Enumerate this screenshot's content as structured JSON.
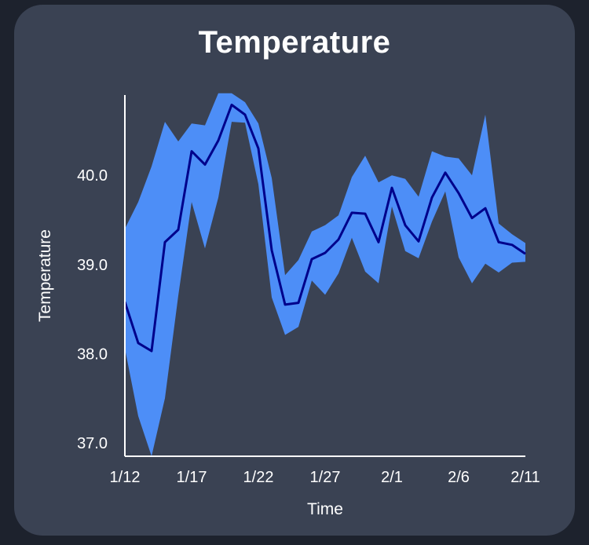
{
  "chart_data": {
    "type": "area",
    "title": "Temperature",
    "xlabel": "Time",
    "ylabel": "Temperature",
    "x": [
      "1/12",
      "1/13",
      "1/14",
      "1/15",
      "1/16",
      "1/17",
      "1/18",
      "1/19",
      "1/20",
      "1/21",
      "1/22",
      "1/23",
      "1/24",
      "1/25",
      "1/26",
      "1/27",
      "1/28",
      "1/29",
      "1/30",
      "1/31",
      "2/1",
      "2/2",
      "2/3",
      "2/4",
      "2/5",
      "2/6",
      "2/7",
      "2/8",
      "2/9",
      "2/10",
      "2/11"
    ],
    "xticks": [
      "1/12",
      "1/17",
      "1/22",
      "1/27",
      "2/1",
      "2/6",
      "2/11"
    ],
    "yticks": [
      "37.0",
      "38.0",
      "39.0",
      "40.0"
    ],
    "ylim": [
      36.85,
      40.9
    ],
    "grid": false,
    "series": [
      {
        "values": [
          38.58,
          38.12,
          38.03,
          39.25,
          39.39,
          40.27,
          40.12,
          40.39,
          40.79,
          40.68,
          40.3,
          39.16,
          38.55,
          38.57,
          39.06,
          39.13,
          39.28,
          39.58,
          39.57,
          39.25,
          39.86,
          39.44,
          39.26,
          39.75,
          40.03,
          39.8,
          39.52,
          39.63,
          39.25,
          39.22,
          39.12
        ],
        "upper": [
          39.4,
          39.7,
          40.1,
          40.6,
          40.38,
          40.58,
          40.56,
          40.92,
          40.92,
          40.82,
          40.58,
          39.97,
          38.88,
          39.05,
          39.37,
          39.44,
          39.55,
          39.98,
          40.22,
          39.92,
          40.0,
          39.96,
          39.76,
          40.27,
          40.21,
          40.19,
          40.0,
          40.68,
          39.46,
          39.34,
          39.24
        ],
        "lower": [
          38.06,
          37.3,
          36.85,
          37.5,
          38.65,
          39.7,
          39.18,
          39.75,
          40.6,
          40.59,
          39.9,
          38.63,
          38.21,
          38.3,
          38.82,
          38.66,
          38.9,
          39.3,
          38.92,
          38.79,
          39.65,
          39.15,
          39.07,
          39.48,
          39.82,
          39.08,
          38.79,
          39.01,
          38.91,
          39.02,
          39.03
        ]
      }
    ],
    "colors": {
      "band": "#4d8ef7",
      "line": "#00008b",
      "axis": "#ffffff",
      "card": "#3a4253",
      "page": "#1d222d"
    }
  }
}
